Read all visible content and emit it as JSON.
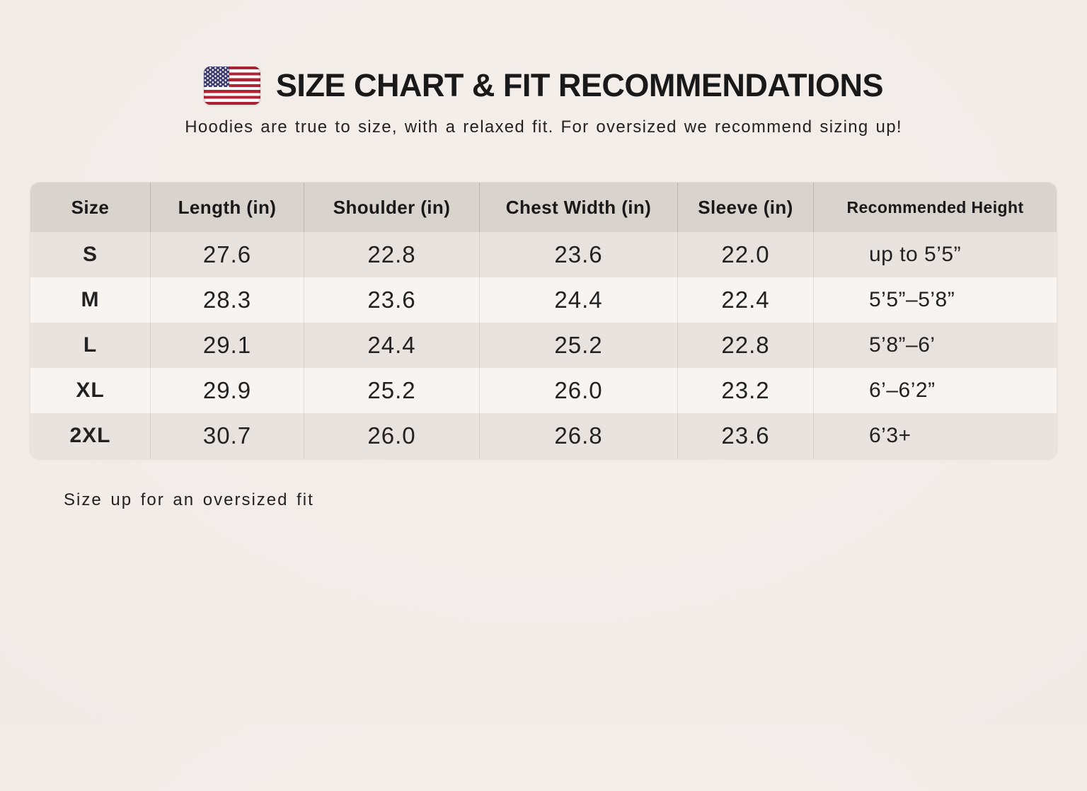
{
  "header": {
    "flag_icon": "us-flag-icon",
    "title": "SIZE CHART & FIT RECOMMENDATIONS",
    "subtitle": "Hoodies are true to size, with a relaxed fit. For oversized we recommend sizing up!"
  },
  "size_chart": {
    "columns": [
      "Size",
      "Length (in)",
      "Shoulder (in)",
      "Chest Width (in)",
      "Sleeve (in)",
      "Recommended Height"
    ],
    "rows": [
      [
        "S",
        "27.6",
        "22.8",
        "23.6",
        "22.0",
        "up to 5’5”"
      ],
      [
        "M",
        "28.3",
        "23.6",
        "24.4",
        "22.4",
        "5’5”–5’8”"
      ],
      [
        "L",
        "29.1",
        "24.4",
        "25.2",
        "22.8",
        "5’8”–6’"
      ],
      [
        "XL",
        "29.9",
        "25.2",
        "26.0",
        "23.2",
        "6’–6’2”"
      ],
      [
        "2XL",
        "30.7",
        "26.0",
        "26.8",
        "23.6",
        "6’3+"
      ]
    ]
  },
  "footer": {
    "note": "Size up for an oversized fit"
  },
  "chart_data": {
    "type": "table",
    "title": "SIZE CHART & FIT RECOMMENDATIONS",
    "columns": [
      "Size",
      "Length (in)",
      "Shoulder (in)",
      "Chest Width (in)",
      "Sleeve (in)",
      "Recommended Height"
    ],
    "rows": [
      {
        "size": "S",
        "length_in": 27.6,
        "shoulder_in": 22.8,
        "chest_width_in": 23.6,
        "sleeve_in": 22.0,
        "recommended_height": "up to 5’5”"
      },
      {
        "size": "M",
        "length_in": 28.3,
        "shoulder_in": 23.6,
        "chest_width_in": 24.4,
        "sleeve_in": 22.4,
        "recommended_height": "5’5”–5’8”"
      },
      {
        "size": "L",
        "length_in": 29.1,
        "shoulder_in": 24.4,
        "chest_width_in": 25.2,
        "sleeve_in": 22.8,
        "recommended_height": "5’8”–6’"
      },
      {
        "size": "XL",
        "length_in": 29.9,
        "shoulder_in": 25.2,
        "chest_width_in": 26.0,
        "sleeve_in": 23.2,
        "recommended_height": "6’–6’2”"
      },
      {
        "size": "2XL",
        "length_in": 30.7,
        "shoulder_in": 26.0,
        "chest_width_in": 26.8,
        "sleeve_in": 23.6,
        "recommended_height": "6’3+"
      }
    ],
    "notes": [
      "Hoodies are true to size, with a relaxed fit. For oversized we recommend sizing up!",
      "Size up for an oversized fit"
    ]
  },
  "colors": {
    "page_bg": "#f1ebe8",
    "page_bg_center": "#f5efec",
    "page_bg_edge": "#e7e1de",
    "header_bg": "#d9d3cd",
    "row_light": "#f8f4f1",
    "row_dark": "#e9e3df",
    "title_text": "#191919",
    "text": "#222222",
    "flag_red": "#b22334",
    "flag_blue": "#3c3b6e"
  }
}
